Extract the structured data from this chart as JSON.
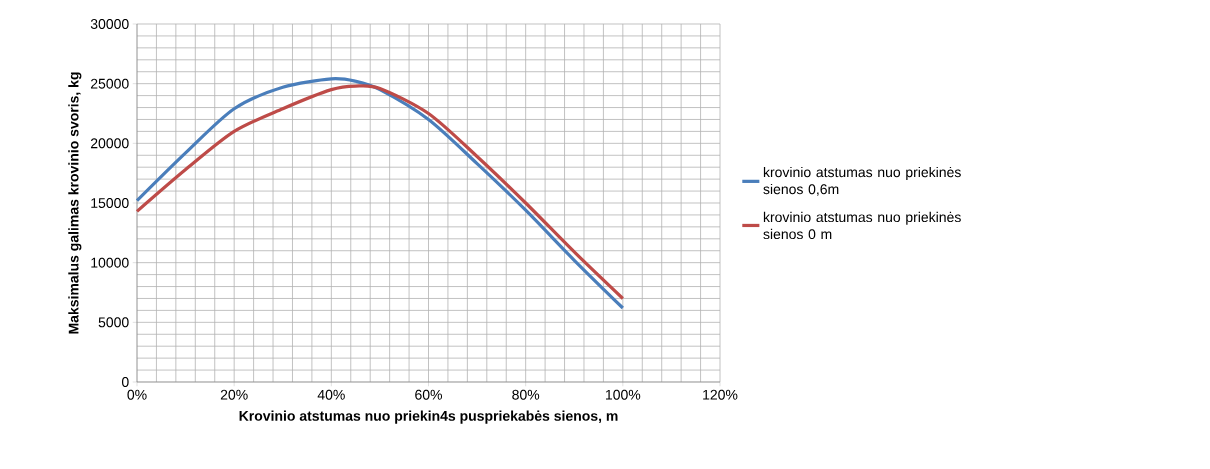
{
  "chart_data": {
    "type": "line",
    "xlabel": "Krovinio atstumas nuo priekin4s puspriekabės sienos, m",
    "ylabel": "Maksimalus galimas krovinio svoris, kg",
    "x": [
      0,
      10,
      20,
      30,
      40,
      45,
      50,
      60,
      70,
      80,
      90,
      100
    ],
    "series": [
      {
        "name": "krovinio atstumas nuo priekinės sienos 0,6m",
        "color": "#4a7ebb",
        "values": [
          15200,
          19200,
          22900,
          24700,
          25400,
          25200,
          24500,
          22000,
          18300,
          14400,
          10200,
          6200
        ]
      },
      {
        "name": "krovinio atstumas nuo priekinės sienos 0 m",
        "color": "#be4b48",
        "values": [
          14300,
          17800,
          21000,
          22900,
          24500,
          24800,
          24600,
          22500,
          18900,
          15000,
          10900,
          7000
        ]
      }
    ],
    "xlim": [
      0,
      120
    ],
    "ylim": [
      0,
      30000
    ],
    "xticks": [
      {
        "value": 0,
        "label": "0%"
      },
      {
        "value": 20,
        "label": "20%"
      },
      {
        "value": 40,
        "label": "40%"
      },
      {
        "value": 60,
        "label": "60%"
      },
      {
        "value": 80,
        "label": "80%"
      },
      {
        "value": 100,
        "label": "100%"
      },
      {
        "value": 120,
        "label": "120%"
      }
    ],
    "yticks": [
      0,
      5000,
      10000,
      15000,
      20000,
      25000,
      30000
    ],
    "grid": true,
    "legend": "right",
    "marker": "none",
    "line_style": "solid"
  }
}
